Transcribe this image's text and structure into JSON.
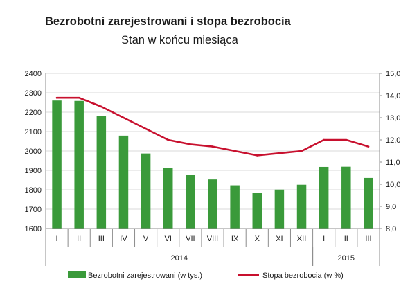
{
  "chart_data": {
    "type": "bar+line",
    "title": "Bezrobotni zarejestrowani i stopa bezrobocia",
    "subtitle": "Stan w końcu miesiąca",
    "categories": [
      "I",
      "II",
      "III",
      "IV",
      "V",
      "VI",
      "VII",
      "VIII",
      "IX",
      "X",
      "XI",
      "XII",
      "I",
      "II",
      "III"
    ],
    "year_groups": [
      {
        "label": "2014",
        "count": 12
      },
      {
        "label": "2015",
        "count": 3
      }
    ],
    "series": [
      {
        "name": "Bezrobotni zarejestrowani  (w tys.)",
        "type": "bar",
        "axis": "left",
        "color": "#3a9a3a",
        "values": [
          2260,
          2258,
          2182,
          2079,
          1987,
          1913,
          1878,
          1853,
          1823,
          1785,
          1801,
          1826,
          1918,
          1919,
          1861
        ]
      },
      {
        "name": "Stopa bezrobocia  (w %)",
        "type": "line",
        "axis": "right",
        "color": "#c8102e",
        "values": [
          13.9,
          13.9,
          13.5,
          13.0,
          12.5,
          12.0,
          11.8,
          11.7,
          11.5,
          11.3,
          11.4,
          11.5,
          12.0,
          12.0,
          11.7
        ]
      }
    ],
    "y_left": {
      "min": 1600,
      "max": 2400,
      "step": 100,
      "ticks": [
        "1600",
        "1700",
        "1800",
        "1900",
        "2000",
        "2100",
        "2200",
        "2300",
        "2400"
      ]
    },
    "y_right": {
      "min": 8.0,
      "max": 15.0,
      "step": 1.0,
      "ticks": [
        "8,0",
        "9,0",
        "10,0",
        "11,0",
        "12,0",
        "13,0",
        "14,0",
        "15,0"
      ]
    },
    "grid": true,
    "legend_position": "bottom"
  }
}
